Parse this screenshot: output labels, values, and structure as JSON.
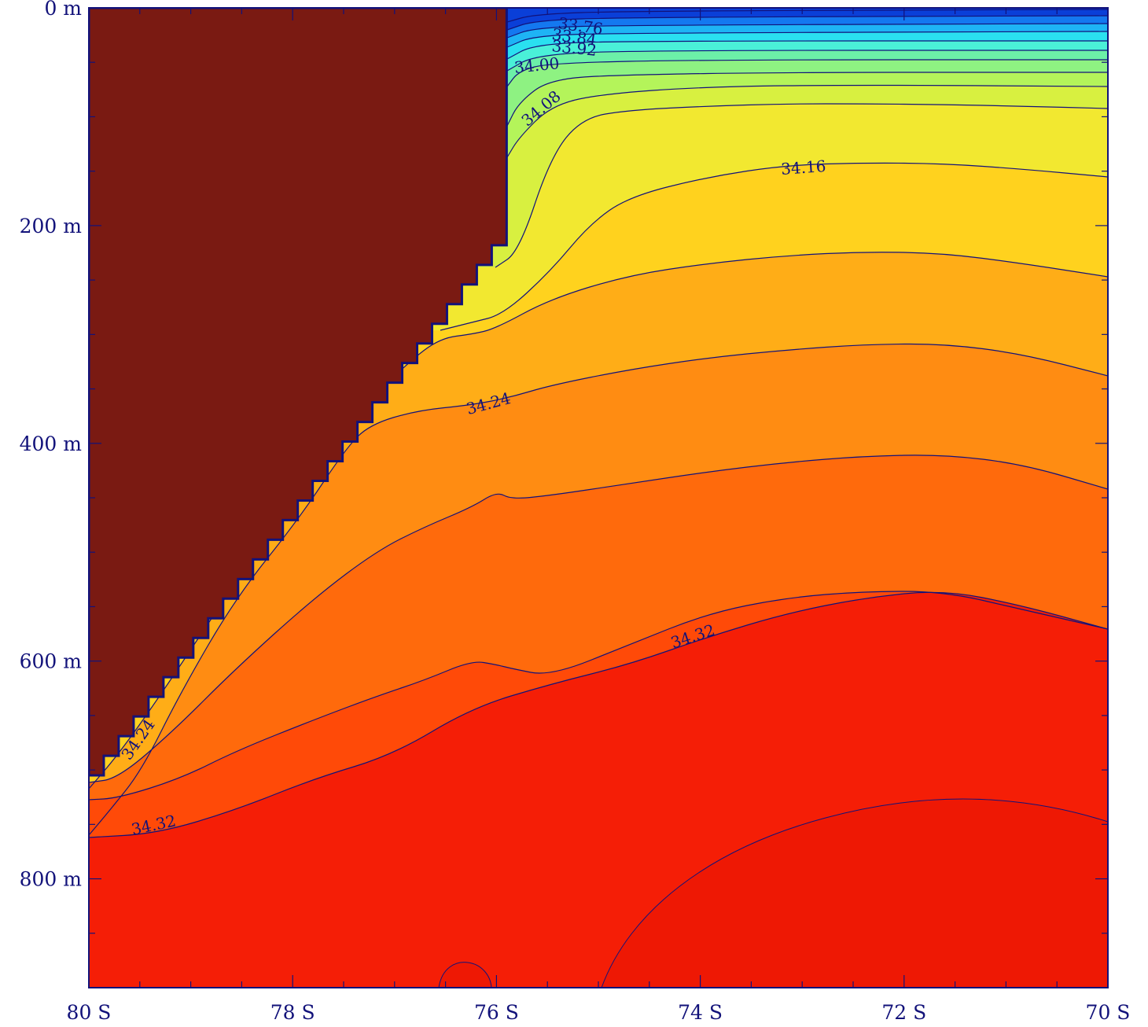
{
  "chart_data": {
    "type": "contour",
    "x_axis": {
      "range": [
        -80,
        -70
      ],
      "ticks": [
        -80,
        -78,
        -76,
        -74,
        -72,
        -70
      ],
      "tick_labels": [
        "80  S",
        "78  S",
        "76  S",
        "74  S",
        "72  S",
        "70  S"
      ]
    },
    "y_axis": {
      "range": [
        0,
        900
      ],
      "inverted": true,
      "ticks": [
        0,
        200,
        400,
        600,
        800
      ],
      "tick_labels": [
        "0  m",
        "200  m",
        "400  m",
        "600  m",
        "800  m"
      ]
    },
    "grid": false,
    "ice_shelf": {
      "color": "#7a1a12",
      "front_latitude": -75.9,
      "front_draft_m": 200,
      "base_at_80S_m": 705
    },
    "contour_levels": [
      33.76,
      33.8,
      33.84,
      33.88,
      33.92,
      33.96,
      34.0,
      34.04,
      34.08,
      34.12,
      34.16,
      34.2,
      34.24,
      34.28,
      34.32,
      34.36
    ],
    "contour_labels": [
      "33.76",
      "33.84",
      "33.92",
      "34.00",
      "34.08",
      "34.16",
      "34.24",
      "34.32",
      "34.24",
      "34.32"
    ],
    "fill_colors": {
      "33.76": "#0a3fd8",
      "33.80": "#1478f0",
      "33.84": "#1eb4f5",
      "33.88": "#2ae0f0",
      "33.92": "#4af0d8",
      "33.96": "#6cf0a8",
      "34.00": "#8ef282",
      "34.04": "#b4f45a",
      "34.08": "#d8f040",
      "34.12": "#f2e830",
      "34.16": "#ffd21e",
      "34.20": "#ffad17",
      "34.24": "#ff8c12",
      "34.28": "#ff6a0c",
      "34.32": "#ff4a08",
      "34.36": "#f51e06"
    }
  }
}
